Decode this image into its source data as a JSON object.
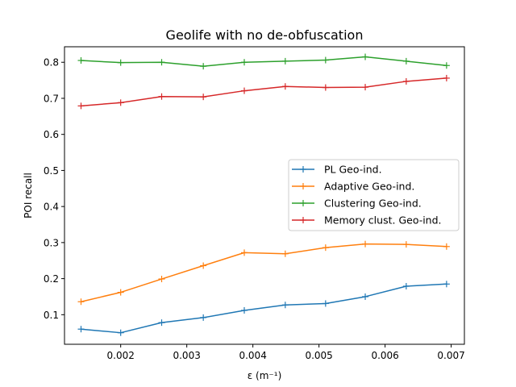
{
  "chart_data": {
    "type": "line",
    "title": "Geolife with no de-obfuscation",
    "xlabel": "ε (m⁻¹)",
    "ylabel": "POI recall",
    "xlim": [
      0.00115,
      0.0072
    ],
    "ylim": [
      0.018,
      0.843
    ],
    "x_ticks": [
      0.002,
      0.003,
      0.004,
      0.005,
      0.006,
      0.007
    ],
    "x_tick_labels": [
      "0.002",
      "0.003",
      "0.004",
      "0.005",
      "0.006",
      "0.007"
    ],
    "y_ticks": [
      0.1,
      0.2,
      0.3,
      0.4,
      0.5,
      0.6,
      0.7,
      0.8
    ],
    "y_tick_labels": [
      "0.1",
      "0.2",
      "0.3",
      "0.4",
      "0.5",
      "0.6",
      "0.7",
      "0.8"
    ],
    "legend_position": "center-right",
    "x": [
      0.0014,
      0.002,
      0.00262,
      0.00325,
      0.00387,
      0.00449,
      0.0051,
      0.0057,
      0.00632,
      0.00693
    ],
    "series": [
      {
        "name": "PL Geo-ind.",
        "color": "#1f77b4",
        "values": [
          0.06,
          0.05,
          0.078,
          0.092,
          0.112,
          0.127,
          0.131,
          0.15,
          0.179,
          0.185
        ]
      },
      {
        "name": "Adaptive Geo-ind.",
        "color": "#ff7f0e",
        "values": [
          0.136,
          0.162,
          0.199,
          0.236,
          0.272,
          0.269,
          0.286,
          0.296,
          0.295,
          0.289
        ]
      },
      {
        "name": "Clustering Geo-ind.",
        "color": "#2ca02c",
        "values": [
          0.805,
          0.799,
          0.8,
          0.789,
          0.8,
          0.803,
          0.806,
          0.815,
          0.803,
          0.791
        ]
      },
      {
        "name": "Memory clust. Geo-ind.",
        "color": "#d62728",
        "values": [
          0.679,
          0.688,
          0.705,
          0.704,
          0.721,
          0.733,
          0.73,
          0.731,
          0.747,
          0.756
        ]
      }
    ]
  }
}
